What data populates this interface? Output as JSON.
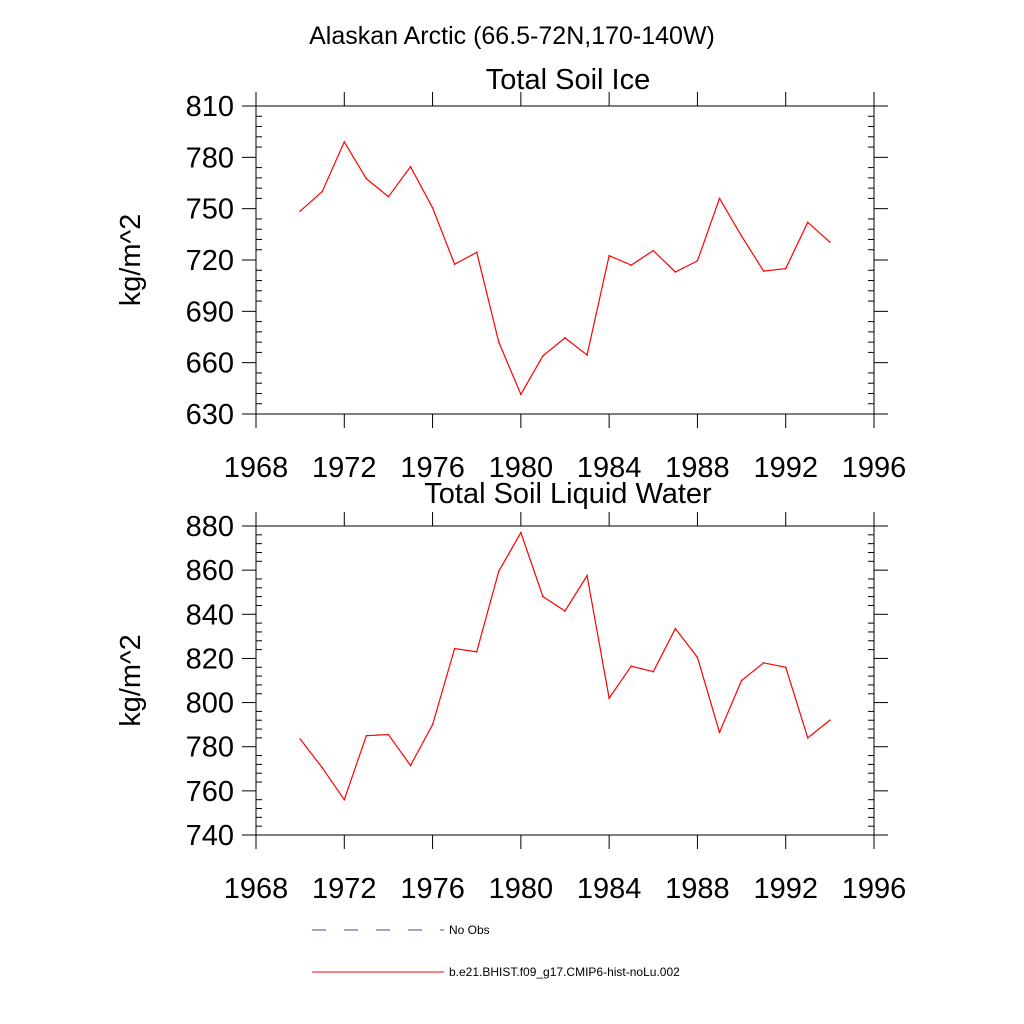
{
  "figure": {
    "suptitle": "Alaskan Arctic (66.5-72N,170-140W)"
  },
  "chart_data": [
    {
      "type": "line",
      "title": "Total Soil Ice",
      "xlabel": "",
      "ylabel": "kg/m^2",
      "xlim": [
        1968,
        1996
      ],
      "ylim": [
        630,
        810
      ],
      "xticks": [
        1968,
        1972,
        1976,
        1980,
        1984,
        1988,
        1992,
        1996
      ],
      "yticks": [
        630,
        660,
        690,
        720,
        750,
        780,
        810
      ],
      "grid": false,
      "series": [
        {
          "name": "b.e21.BHIST.f09_g17.CMIP6-hist-noLu.002",
          "color": "#ff0000",
          "x": [
            1970,
            1971,
            1972,
            1973,
            1974,
            1975,
            1976,
            1977,
            1978,
            1979,
            1980,
            1981,
            1982,
            1983,
            1984,
            1985,
            1986,
            1987,
            1988,
            1989,
            1990,
            1991,
            1992,
            1993,
            1994
          ],
          "y": [
            748.5,
            760,
            789,
            767.5,
            757,
            774.5,
            750.5,
            717.5,
            724.5,
            672,
            641.5,
            664,
            674.5,
            664.5,
            722.5,
            717,
            725.5,
            713,
            719.5,
            756,
            734,
            713.5,
            715,
            742,
            730.5
          ]
        }
      ]
    },
    {
      "type": "line",
      "title": "Total Soil Liquid Water",
      "xlabel": "",
      "ylabel": "kg/m^2",
      "xlim": [
        1968,
        1996
      ],
      "ylim": [
        740,
        880
      ],
      "xticks": [
        1968,
        1972,
        1976,
        1980,
        1984,
        1988,
        1992,
        1996
      ],
      "yticks": [
        740,
        760,
        780,
        800,
        820,
        840,
        860,
        880
      ],
      "grid": false,
      "series": [
        {
          "name": "b.e21.BHIST.f09_g17.CMIP6-hist-noLu.002",
          "color": "#ff0000",
          "x": [
            1970,
            1971,
            1972,
            1973,
            1974,
            1975,
            1976,
            1977,
            1978,
            1979,
            1980,
            1981,
            1982,
            1983,
            1984,
            1985,
            1986,
            1987,
            1988,
            1989,
            1990,
            1991,
            1992,
            1993,
            1994
          ],
          "y": [
            783.5,
            770.5,
            756,
            785,
            785.5,
            771.5,
            790,
            824.5,
            823,
            859.5,
            877,
            848,
            841.5,
            857.5,
            802,
            816.5,
            814,
            833.5,
            820.5,
            786.5,
            810,
            818,
            816,
            784,
            792
          ]
        }
      ]
    }
  ],
  "legend": {
    "placement": "bottom",
    "entries": [
      {
        "label": "No Obs",
        "color": "#4a4a8a",
        "style": "dashed"
      },
      {
        "label": "b.e21.BHIST.f09_g17.CMIP6-hist-noLu.002",
        "color": "#ff0000",
        "style": "solid"
      }
    ]
  }
}
